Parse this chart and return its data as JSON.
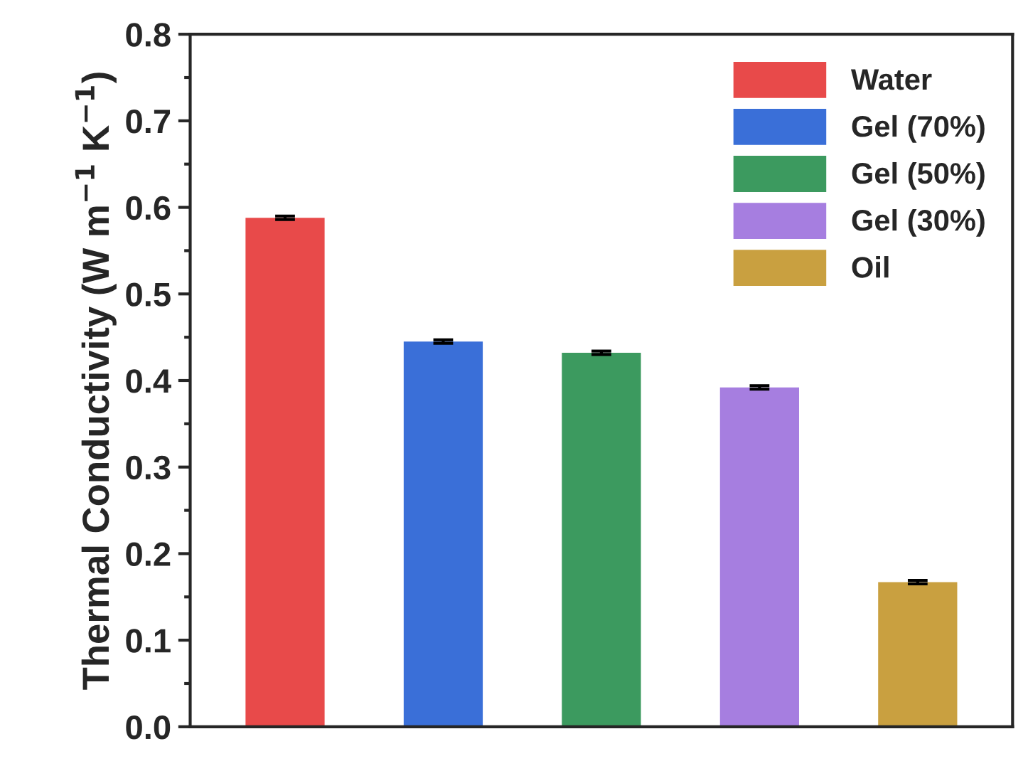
{
  "chart_data": {
    "type": "bar",
    "ylabel": "Thermal Conductivity (W m$^{−1}$ K$^{−1}$)",
    "categories": [
      null,
      null,
      null,
      null,
      null
    ],
    "series": [
      {
        "name": "Water",
        "color": "#e84a4a",
        "values": [
          0.588,
          null,
          null,
          null,
          null
        ],
        "errors": [
          0.002,
          null,
          null,
          null,
          null
        ]
      },
      {
        "name": "Gel (70%)",
        "color": "#3a6fd8",
        "values": [
          null,
          0.445,
          null,
          null,
          null
        ],
        "errors": [
          null,
          0.002,
          null,
          null,
          null
        ]
      },
      {
        "name": "Gel (50%)",
        "color": "#3c9a5f",
        "values": [
          null,
          null,
          0.432,
          null,
          null
        ],
        "errors": [
          null,
          null,
          0.002,
          null,
          null
        ]
      },
      {
        "name": "Gel (30%)",
        "color": "#a67ee0",
        "values": [
          null,
          null,
          null,
          0.392,
          null
        ],
        "errors": [
          null,
          null,
          null,
          0.002,
          null
        ]
      },
      {
        "name": "Oil",
        "color": "#c9a040",
        "values": [
          null,
          null,
          null,
          null,
          0.167
        ],
        "errors": [
          null,
          null,
          null,
          null,
          0.002
        ]
      }
    ],
    "ylim": [
      0.0,
      0.8
    ],
    "yticks": [
      {
        "value": 0.0,
        "label": "0.0"
      },
      0.1,
      0.2,
      0.3,
      0.4,
      0.5,
      0.6,
      0.7,
      0.8
    ],
    "legend": "top right",
    "grid": false
  }
}
